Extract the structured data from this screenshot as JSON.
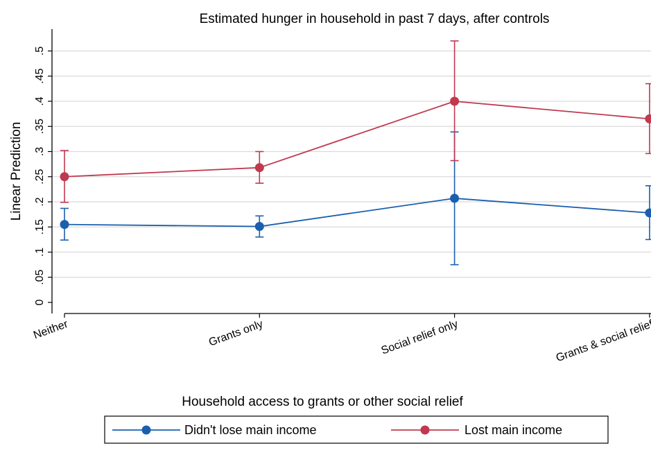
{
  "chart_data": {
    "type": "line",
    "title": "Estimated hunger in household in past 7 days, after controls",
    "xlabel": "Household access to grants or other social relief",
    "ylabel": "Linear Prediction",
    "categories": [
      "Neither",
      "Grants only",
      "Social relief only",
      "Grants & social relief"
    ],
    "yticks": [
      0,
      0.05,
      0.1,
      0.15,
      0.2,
      0.25,
      0.3,
      0.35,
      0.4,
      0.45,
      0.5
    ],
    "ytick_labels": [
      "0",
      ".05",
      ".1",
      ".15",
      ".2",
      ".25",
      ".3",
      ".35",
      ".4",
      ".45",
      ".5"
    ],
    "ylim": [
      -0.018,
      0.53
    ],
    "grid": true,
    "legend_position": "bottom",
    "series": [
      {
        "name": "Didn't lose main income",
        "color": "#1a5fae",
        "values": [
          0.155,
          0.151,
          0.207,
          0.178
        ],
        "ci_low": [
          0.124,
          0.13,
          0.075,
          0.125
        ],
        "ci_high": [
          0.187,
          0.172,
          0.339,
          0.232
        ]
      },
      {
        "name": "Lost main income",
        "color": "#c0394f",
        "values": [
          0.25,
          0.268,
          0.4,
          0.365
        ],
        "ci_low": [
          0.199,
          0.237,
          0.282,
          0.296
        ],
        "ci_high": [
          0.302,
          0.3,
          0.52,
          0.435
        ]
      }
    ]
  }
}
